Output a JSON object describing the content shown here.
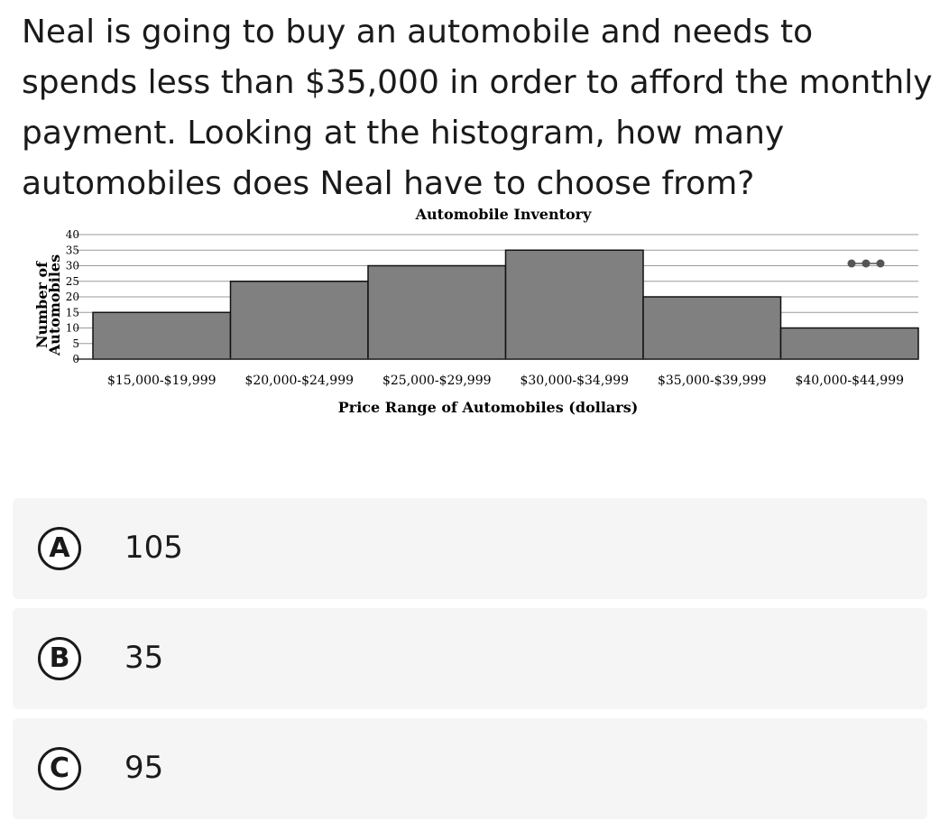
{
  "question": {
    "text": "Neal is going to buy an automobile and needs to spends less than $35,000 in order to afford the monthly payment. Looking at the histogram, how many automobiles does Neal have to choose from?"
  },
  "chart_data": {
    "type": "bar",
    "title": "Automobile Inventory",
    "xlabel": "Price Range of Automobiles (dollars)",
    "ylabel": "Number of Automobiles",
    "categories": [
      "$15,000-$19,999",
      "$20,000-$24,999",
      "$25,000-$29,999",
      "$30,000-$34,999",
      "$35,000-$39,999",
      "$40,000-$44,999"
    ],
    "values": [
      15,
      25,
      30,
      35,
      20,
      10
    ],
    "ylim": [
      0,
      40
    ],
    "yticks": [
      0,
      5,
      10,
      15,
      20,
      25,
      30,
      35,
      40
    ],
    "grid": true,
    "legend": "none",
    "bar_color": "#808080",
    "has_ellipsis_marker": true
  },
  "choices": [
    {
      "letter": "A",
      "text": "105"
    },
    {
      "letter": "B",
      "text": "35"
    },
    {
      "letter": "C",
      "text": "95"
    }
  ]
}
